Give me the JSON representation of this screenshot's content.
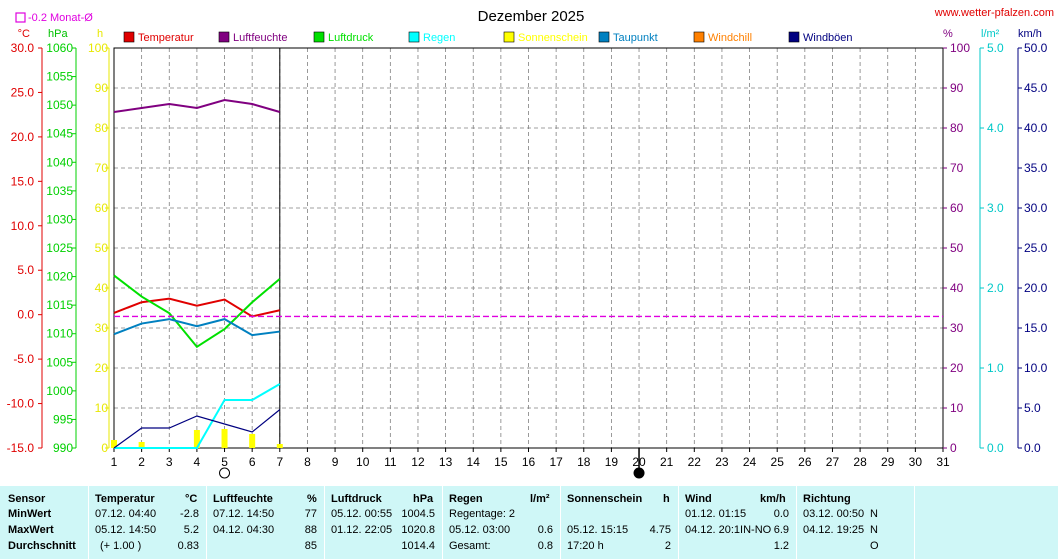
{
  "title": "Dezember 2025",
  "site": "www.wetter-pfalzen.com",
  "monat_label": "-0.2 Monat-Ø",
  "units": {
    "celsius": "°C",
    "hpa": "hPa",
    "hours": "h",
    "percent": "%",
    "lm2": "l/m²",
    "kmh": "km/h"
  },
  "legend": [
    {
      "label": "Temperatur",
      "color": "#e00000"
    },
    {
      "label": "Luftfeuchte",
      "color": "#800080"
    },
    {
      "label": "Luftdruck",
      "color": "#00e000"
    },
    {
      "label": "Regen",
      "color": "#00ffff"
    },
    {
      "label": "Sonnenschein",
      "color": "#ffff00"
    },
    {
      "label": "Taupunkt",
      "color": "#0080c0"
    },
    {
      "label": "Windchill",
      "color": "#ff8000"
    },
    {
      "label": "Windböen",
      "color": "#000080"
    }
  ],
  "colors": {
    "temp": "#e00000",
    "hum": "#800080",
    "press": "#00e000",
    "rain": "#00ffff",
    "sun": "#ffff00",
    "dew": "#0080c0",
    "wind": "#000080",
    "monat": "#e000e0",
    "grid": "#808080",
    "panel": "#cff7f7"
  },
  "chart_data": {
    "type": "line",
    "title": "Dezember 2025",
    "x": [
      1,
      2,
      3,
      4,
      5,
      6,
      7,
      8,
      9,
      10,
      11,
      12,
      13,
      14,
      15,
      16,
      17,
      18,
      19,
      20,
      21,
      22,
      23,
      24,
      25,
      26,
      27,
      28,
      29,
      30,
      31
    ],
    "xlim": [
      1,
      31
    ],
    "axes": {
      "temperature": {
        "unit": "°C",
        "ylim": [
          -15,
          30
        ],
        "ticks": [
          "30.0",
          "25.0",
          "20.0",
          "15.0",
          "10.0",
          "5.0",
          "0.0",
          "-5.0",
          "-10.0",
          "-15.0"
        ]
      },
      "pressure": {
        "unit": "hPa",
        "ylim": [
          990,
          1060
        ],
        "ticks": [
          "1060",
          "1055",
          "1050",
          "1045",
          "1040",
          "1035",
          "1030",
          "1025",
          "1020",
          "1015",
          "1010",
          "1005",
          "1000",
          "995",
          "990"
        ]
      },
      "sunshine": {
        "unit": "h",
        "ylim": [
          0,
          100
        ],
        "ticks": [
          "100",
          "90",
          "80",
          "70",
          "60",
          "50",
          "40",
          "30",
          "20",
          "10",
          "0"
        ]
      },
      "humidity": {
        "unit": "%",
        "ylim": [
          0,
          100
        ],
        "ticks": [
          "100",
          "90",
          "80",
          "70",
          "60",
          "50",
          "40",
          "30",
          "20",
          "10",
          "0"
        ]
      },
      "rain": {
        "unit": "l/m²",
        "ylim": [
          0,
          5
        ],
        "ticks": [
          "5.0",
          "4.0",
          "3.0",
          "2.0",
          "1.0",
          "0.0"
        ]
      },
      "wind": {
        "unit": "km/h",
        "ylim": [
          0,
          50
        ],
        "ticks": [
          "50.0",
          "45.0",
          "40.0",
          "35.0",
          "30.0",
          "25.0",
          "20.0",
          "15.0",
          "10.0",
          "5.0",
          "0.0"
        ]
      }
    },
    "series": [
      {
        "name": "Temperatur",
        "axis": "temperature",
        "x": [
          1,
          2,
          3,
          4,
          5,
          6,
          7
        ],
        "values": [
          0.2,
          1.4,
          1.8,
          1.0,
          1.7,
          -0.2,
          0.5
        ]
      },
      {
        "name": "Luftfeuchte",
        "axis": "humidity",
        "x": [
          1,
          2,
          3,
          4,
          5,
          6,
          7
        ],
        "values": [
          84,
          85,
          86,
          85,
          87,
          86,
          84
        ]
      },
      {
        "name": "Luftdruck",
        "axis": "pressure",
        "x": [
          1,
          2,
          3,
          4,
          5,
          6,
          7
        ],
        "values": [
          1020.2,
          1016.5,
          1013.6,
          1007.7,
          1010.8,
          1015.5,
          1019.6
        ]
      },
      {
        "name": "Regen",
        "axis": "rain",
        "x": [
          1,
          2,
          3,
          4,
          5,
          6,
          7
        ],
        "values": [
          0,
          0,
          0,
          0,
          0.6,
          0.6,
          0.8
        ]
      },
      {
        "name": "Taupunkt",
        "axis": "temperature",
        "x": [
          1,
          2,
          3,
          4,
          5,
          6,
          7
        ],
        "values": [
          -2.2,
          -1.0,
          -0.5,
          -1.3,
          -0.5,
          -2.3,
          -1.9
        ]
      },
      {
        "name": "Windböen",
        "axis": "wind",
        "x": [
          1,
          2,
          3,
          4,
          5,
          6,
          7
        ],
        "values": [
          0,
          2.5,
          2.5,
          4.0,
          3.0,
          2.0,
          4.8
        ]
      },
      {
        "name": "Sonnenschein",
        "type": "bar",
        "axis": "sunshine",
        "x": [
          1,
          2,
          3,
          4,
          5,
          6,
          7
        ],
        "values": [
          2,
          1.5,
          0,
          4.5,
          4.75,
          3.5,
          1
        ]
      },
      {
        "name": "Monat-Ø",
        "axis": "temperature",
        "x": [
          1,
          31
        ],
        "values": [
          -0.2,
          -0.2
        ]
      }
    ],
    "moon": [
      {
        "x": 5,
        "phase": "full"
      },
      {
        "x": 20,
        "phase": "new"
      }
    ],
    "current_day": 7
  },
  "table": {
    "row_labels": [
      "Sensor",
      "MinWert",
      "MaxWert",
      "Durchschnitt"
    ],
    "temp": {
      "head": "Temperatur",
      "unit": "°C",
      "min_time": "07.12.  04:40",
      "min": "-2.8",
      "max_time": "05.12.  14:50",
      "max": "5.2",
      "avg_note": "(+ 1.00 )",
      "avg": "0.83"
    },
    "hum": {
      "head": "Luftfeuchte",
      "unit": "%",
      "min_time": "07.12.  14:50",
      "min": "77",
      "max_time": "04.12.  04:30",
      "max": "88",
      "avg": "85"
    },
    "press": {
      "head": "Luftdruck",
      "unit": "hPa",
      "min_time": "05.12.  00:55",
      "min": "1004.5",
      "max_time": "01.12.  22:05",
      "max": "1020.8",
      "avg": "1014.4"
    },
    "rain": {
      "head": "Regen",
      "unit": "l/m²",
      "r1": "Regentage: 2",
      "r2_time": "05.12.  03:00",
      "r2": "0.6",
      "r3_label": "Gesamt:",
      "r3": "0.8"
    },
    "sun": {
      "head": "Sonnenschein",
      "unit": "h",
      "r2_time": "05.12.  15:15",
      "r2": "4.75",
      "r3_label": "17:20 h",
      "r3": "2"
    },
    "wind": {
      "head": "Wind",
      "unit": "km/h",
      "min_time": "01.12.  01:15",
      "min": "0.0",
      "max_time": "04.12.  20:1IN-NO",
      "max": "6.9",
      "avg": "1.2"
    },
    "dir": {
      "head": "Richtung",
      "min_time": "03.12.  00:50",
      "min": "N",
      "max_time": "04.12.  19:25",
      "max": "N",
      "avg": "O"
    }
  }
}
